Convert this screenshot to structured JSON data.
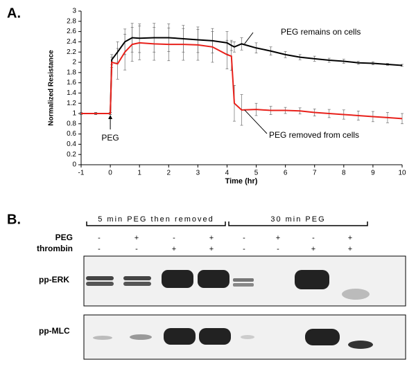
{
  "panel_labels": [
    "A.",
    "B."
  ],
  "chart_data": {
    "type": "line",
    "x_label": "Time (hr)",
    "y_label": "Normalized Resistance",
    "x": [
      -1,
      -0.5,
      0,
      0.05,
      0.25,
      0.5,
      0.75,
      1,
      1.5,
      2,
      2.5,
      3,
      3.5,
      4,
      4.15,
      4.25,
      4.5,
      5,
      5.5,
      6,
      6.5,
      7,
      7.5,
      8,
      8.5,
      9,
      9.5,
      10
    ],
    "series": [
      {
        "name": "PEG remains on cells",
        "color": "#000000",
        "values": [
          1.0,
          1.0,
          1.0,
          2.05,
          2.2,
          2.4,
          2.48,
          2.47,
          2.48,
          2.48,
          2.46,
          2.44,
          2.42,
          2.38,
          2.33,
          2.3,
          2.36,
          2.28,
          2.22,
          2.15,
          2.1,
          2.07,
          2.04,
          2.02,
          1.99,
          1.98,
          1.96,
          1.94
        ],
        "errors": [
          0.02,
          0.02,
          0.02,
          0.1,
          0.2,
          0.25,
          0.28,
          0.28,
          0.28,
          0.27,
          0.26,
          0.25,
          0.24,
          0.22,
          0.1,
          0.1,
          0.12,
          0.1,
          0.08,
          0.06,
          0.05,
          0.05,
          0.04,
          0.04,
          0.03,
          0.03,
          0.02,
          0.02
        ]
      },
      {
        "name": "PEG removed from cells",
        "color": "#e8201a",
        "values": [
          1.0,
          1.0,
          1.0,
          2.0,
          1.97,
          2.2,
          2.35,
          2.38,
          2.36,
          2.35,
          2.35,
          2.34,
          2.3,
          2.15,
          2.12,
          1.2,
          1.07,
          1.08,
          1.06,
          1.06,
          1.05,
          1.02,
          1.0,
          0.98,
          0.96,
          0.94,
          0.92,
          0.9
        ],
        "errors": [
          0.02,
          0.02,
          0.02,
          0.1,
          0.3,
          0.35,
          0.33,
          0.33,
          0.32,
          0.32,
          0.31,
          0.3,
          0.3,
          0.28,
          0.28,
          0.35,
          0.3,
          0.12,
          0.08,
          0.06,
          0.06,
          0.07,
          0.08,
          0.09,
          0.09,
          0.1,
          0.1,
          0.1
        ]
      }
    ],
    "annotations": [
      "PEG"
    ],
    "xlim": [
      -1,
      10
    ],
    "xticks": [
      -1,
      0,
      1,
      2,
      3,
      4,
      5,
      6,
      7,
      8,
      9,
      10
    ],
    "ylim": [
      0,
      3
    ],
    "yticks": [
      0,
      0.2,
      0.4,
      0.6,
      0.8,
      1,
      1.2,
      1.4,
      1.6,
      1.8,
      2,
      2.2,
      2.4,
      2.6,
      2.8,
      3
    ],
    "grid": false
  },
  "blot": {
    "groups": [
      "5 min PEG then removed",
      "30 min PEG"
    ],
    "rows": [
      {
        "label": "PEG",
        "signs": [
          "-",
          "+",
          "-",
          "+",
          "-",
          "+",
          "-",
          "+"
        ]
      },
      {
        "label": "thrombin",
        "signs": [
          "-",
          "-",
          "+",
          "+",
          "-",
          "-",
          "+",
          "+"
        ]
      }
    ],
    "bands": [
      "pp-ERK",
      "pp-MLC"
    ]
  }
}
